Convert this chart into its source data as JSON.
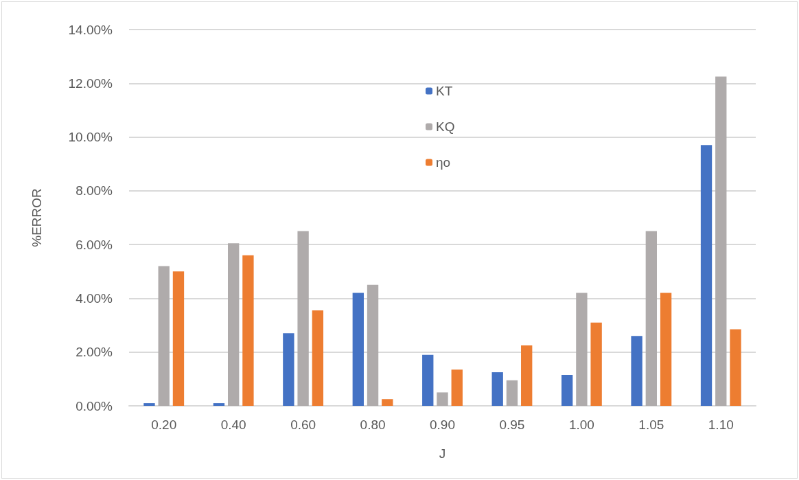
{
  "chart_data": {
    "type": "bar",
    "xlabel": "J",
    "ylabel": "%ERROR",
    "categories": [
      "0.20",
      "0.40",
      "0.60",
      "0.80",
      "0.90",
      "0.95",
      "1.00",
      "1.05",
      "1.10"
    ],
    "series": [
      {
        "name": "KT",
        "color": "#4472c4",
        "values": [
          0.1,
          0.1,
          2.7,
          4.2,
          1.9,
          1.25,
          1.15,
          2.6,
          9.7
        ]
      },
      {
        "name": "KQ",
        "color": "#afabab",
        "values": [
          5.2,
          6.05,
          6.5,
          4.5,
          0.5,
          0.95,
          4.2,
          6.5,
          12.25
        ]
      },
      {
        "name": "ηo",
        "color": "#ed7d31",
        "values": [
          5.0,
          5.6,
          3.55,
          0.25,
          1.35,
          2.25,
          3.1,
          4.2,
          2.85
        ]
      }
    ],
    "ylim": [
      0,
      14
    ],
    "yticks": [
      {
        "value": 0,
        "label": "0.00%"
      },
      {
        "value": 2,
        "label": "2.00%"
      },
      {
        "value": 4,
        "label": "4.00%"
      },
      {
        "value": 6,
        "label": "6.00%"
      },
      {
        "value": 8,
        "label": "8.00%"
      },
      {
        "value": 10,
        "label": "10.00%"
      },
      {
        "value": 12,
        "label": "12.00%"
      },
      {
        "value": 14,
        "label": "14.00%"
      }
    ],
    "grid": "y",
    "legend": "top"
  }
}
